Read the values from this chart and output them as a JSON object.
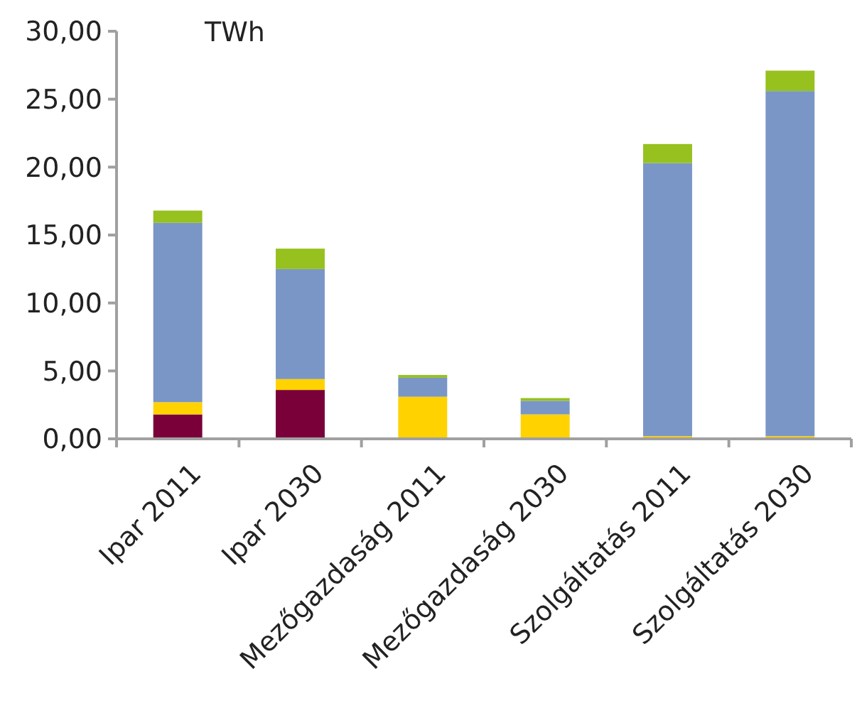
{
  "chart_data": {
    "type": "bar",
    "stacked": true,
    "ylabel": "TWh",
    "categories": [
      "Ipar 2011",
      "Ipar 2030",
      "Mezőgazdaság 2011",
      "Mezőgazdaság 2030",
      "Szolgáltatás 2011",
      "Szolgáltatás 2030"
    ],
    "series": [
      {
        "color": "#7a0039",
        "values": [
          1.8,
          3.6,
          0,
          0,
          0,
          0
        ]
      },
      {
        "color": "#ffd200",
        "values": [
          0.9,
          0.8,
          3.1,
          1.8,
          0.2,
          0.2
        ]
      },
      {
        "color": "#7a96c6",
        "values": [
          13.2,
          8.1,
          1.4,
          1.0,
          20.1,
          25.4
        ]
      },
      {
        "color": "#96c11e",
        "values": [
          0.9,
          1.5,
          0.2,
          0.2,
          1.4,
          1.5
        ]
      }
    ],
    "ylim": [
      0,
      30
    ],
    "yticks": [
      {
        "value": 0,
        "label": "0,00"
      },
      {
        "value": 5,
        "label": "5,00"
      },
      {
        "value": 10,
        "label": "10,00"
      },
      {
        "value": 15,
        "label": "15,00"
      },
      {
        "value": 20,
        "label": "20,00"
      },
      {
        "value": 25,
        "label": "25,00"
      },
      {
        "value": 30,
        "label": "30,00"
      }
    ],
    "grid": false
  }
}
